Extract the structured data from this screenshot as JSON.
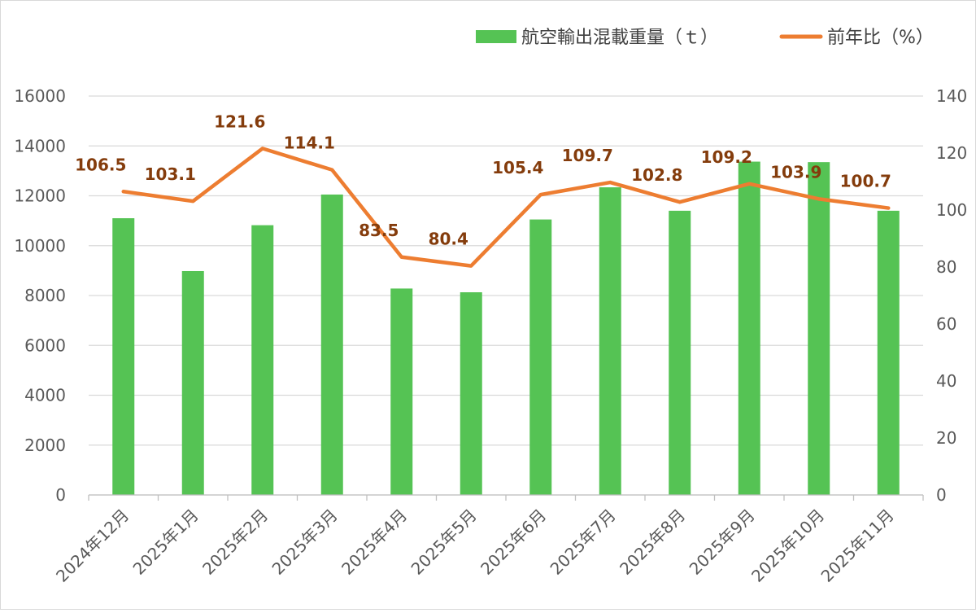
{
  "chart_data": {
    "type": "bar",
    "categories": [
      "2024年12月",
      "2025年1月",
      "2025年2月",
      "2025年3月",
      "2025年4月",
      "2025年5月",
      "2025年6月",
      "2025年7月",
      "2025年8月",
      "2025年9月",
      "2025年10月",
      "2025年11月"
    ],
    "series": [
      {
        "name": "航空輸出混載重量（ｔ）",
        "type": "bar",
        "axis": "left",
        "color": "#55c354",
        "values": [
          11100,
          8980,
          10820,
          12050,
          8280,
          8130,
          11050,
          12340,
          11400,
          13370,
          13350,
          11400
        ]
      },
      {
        "name": "前年比（%）",
        "type": "line",
        "axis": "right",
        "color": "#ed7d31",
        "values": [
          106.5,
          103.1,
          121.6,
          114.1,
          83.5,
          80.4,
          105.4,
          109.7,
          102.8,
          109.2,
          103.9,
          100.7
        ],
        "labels": [
          "106.5",
          "103.1",
          "121.6",
          "114.1",
          "83.5",
          "80.4",
          "105.4",
          "109.7",
          "102.8",
          "109.2",
          "103.9",
          "100.7"
        ]
      }
    ],
    "y_left": {
      "min": 0,
      "max": 16000,
      "ticks": [
        "0",
        "2000",
        "4000",
        "6000",
        "8000",
        "10000",
        "12000",
        "14000",
        "16000"
      ]
    },
    "y_right": {
      "min": 0,
      "max": 140,
      "ticks": [
        "0",
        "20",
        "40",
        "60",
        "80",
        "100",
        "120",
        "140"
      ]
    },
    "grid": true,
    "legend_position": "top-right"
  }
}
